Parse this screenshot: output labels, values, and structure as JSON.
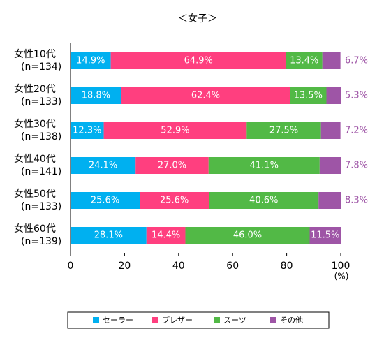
{
  "chart_data": {
    "type": "stacked-bar-horizontal",
    "title": "＜女子＞",
    "categories": [
      [
        "女性10代",
        "(n=134)"
      ],
      [
        "女性20代",
        "(n=133)"
      ],
      [
        "女性30代",
        "(n=138)"
      ],
      [
        "女性40代",
        "(n=141)"
      ],
      [
        "女性50代",
        "(n=133)"
      ],
      [
        "女性60代",
        "(n=139)"
      ]
    ],
    "series": [
      {
        "name": "セーラー",
        "color": "#00b0f0",
        "values": [
          14.9,
          18.8,
          12.3,
          24.1,
          25.6,
          28.1
        ],
        "value_labels": [
          "14.9%",
          "18.8%",
          "12.3%",
          "24.1%",
          "25.6%",
          "28.1%"
        ]
      },
      {
        "name": "ブレザー",
        "color": "#ff3f7f",
        "values": [
          64.9,
          62.4,
          52.9,
          27.0,
          25.6,
          14.4
        ],
        "value_labels": [
          "64.9%",
          "62.4%",
          "52.9%",
          "27.0%",
          "25.6%",
          "14.4%"
        ]
      },
      {
        "name": "スーツ",
        "color": "#52b946",
        "values": [
          13.4,
          13.5,
          27.5,
          41.1,
          40.6,
          46.0
        ],
        "value_labels": [
          "13.4%",
          "13.5%",
          "27.5%",
          "41.1%",
          "40.6%",
          "46.0%"
        ]
      },
      {
        "name": "その他",
        "color": "#9e55a6",
        "values": [
          6.7,
          5.3,
          7.2,
          7.8,
          8.3,
          11.5
        ],
        "value_labels": [
          "6.7%",
          "5.3%",
          "7.2%",
          "7.8%",
          "8.3%",
          "11.5%"
        ]
      }
    ],
    "xlim": [
      0,
      100
    ],
    "xticks": [
      0,
      20,
      40,
      60,
      80,
      100
    ],
    "x_label": "(%)"
  }
}
